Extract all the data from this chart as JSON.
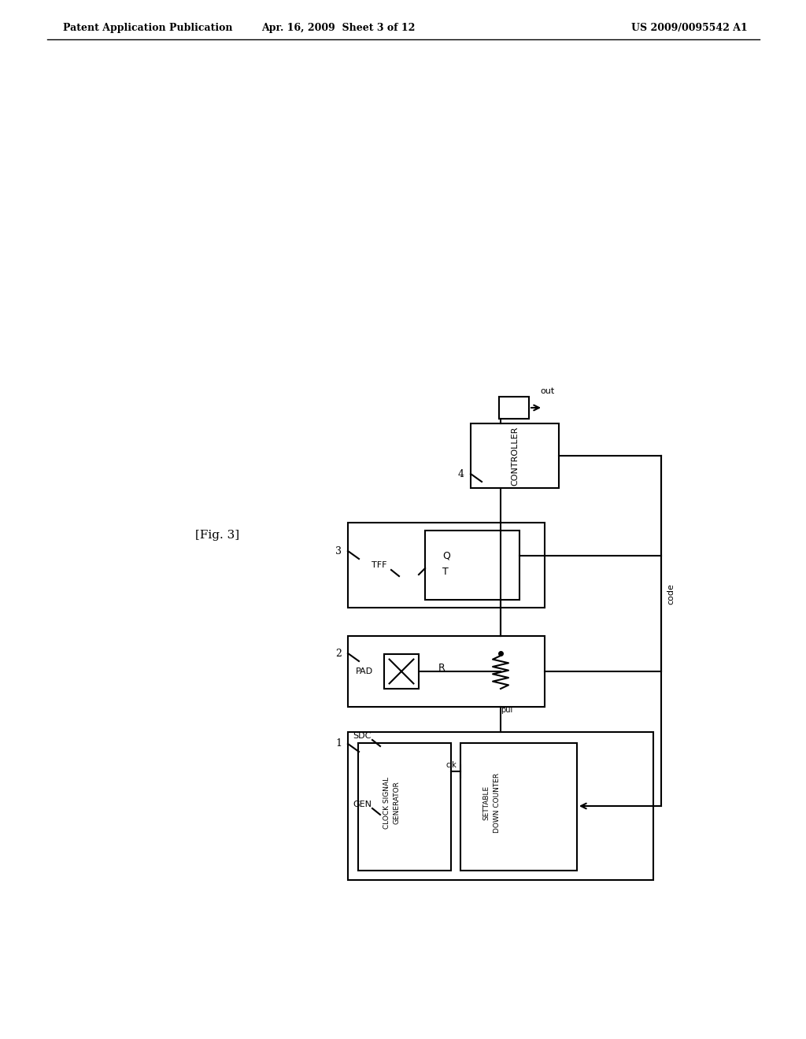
{
  "bg_color": "#ffffff",
  "line_color": "#000000",
  "header_left": "Patent Application Publication",
  "header_mid": "Apr. 16, 2009  Sheet 3 of 12",
  "header_right": "US 2009/0095542 A1",
  "fig_label": "[Fig. 3]"
}
